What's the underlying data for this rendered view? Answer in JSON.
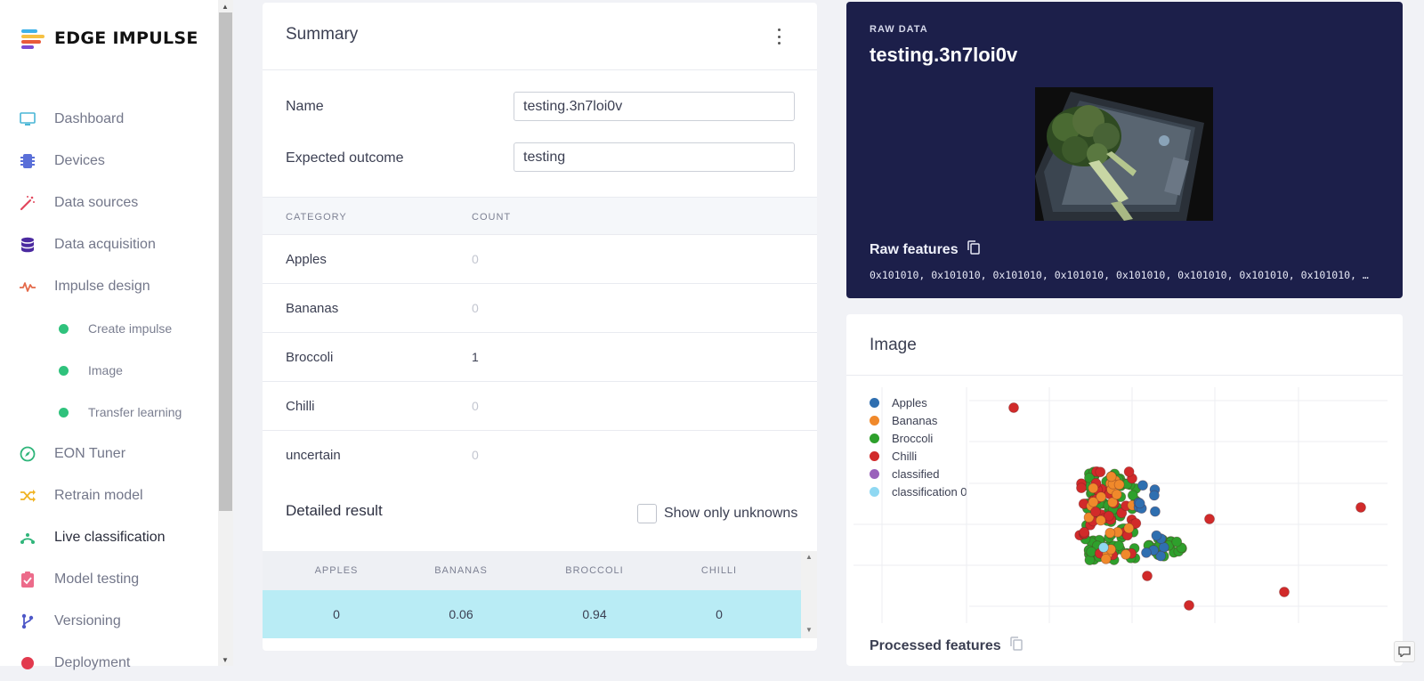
{
  "brand": {
    "name": "EDGE IMPULSE"
  },
  "nav": [
    {
      "label": "Dashboard",
      "icon": "monitor-icon"
    },
    {
      "label": "Devices",
      "icon": "chip-icon"
    },
    {
      "label": "Data sources",
      "icon": "wand-icon"
    },
    {
      "label": "Data acquisition",
      "icon": "database-icon"
    },
    {
      "label": "Impulse design",
      "icon": "pulse-icon"
    },
    {
      "label": "Create impulse",
      "icon": "dot-icon"
    },
    {
      "label": "Image",
      "icon": "dot-icon"
    },
    {
      "label": "Transfer learning",
      "icon": "dot-icon"
    },
    {
      "label": "EON Tuner",
      "icon": "compass-icon"
    },
    {
      "label": "Retrain model",
      "icon": "shuffle-icon"
    },
    {
      "label": "Live classification",
      "icon": "signal-icon"
    },
    {
      "label": "Model testing",
      "icon": "clipboard-check-icon"
    },
    {
      "label": "Versioning",
      "icon": "branch-icon"
    },
    {
      "label": "Deployment",
      "icon": "box-icon"
    }
  ],
  "summary": {
    "title": "Summary",
    "name_label": "Name",
    "name_value": "testing.3n7loi0v",
    "expected_label": "Expected outcome",
    "expected_value": "testing",
    "col_category": "CATEGORY",
    "col_count": "COUNT",
    "rows": [
      {
        "category": "Apples",
        "count": "0"
      },
      {
        "category": "Bananas",
        "count": "0"
      },
      {
        "category": "Broccoli",
        "count": "1"
      },
      {
        "category": "Chilli",
        "count": "0"
      },
      {
        "category": "uncertain",
        "count": "0"
      }
    ],
    "detailed_title": "Detailed result",
    "show_unknowns": "Show only unknowns",
    "detail_cols": [
      "APPLES",
      "BANANAS",
      "BROCCOLI",
      "CHILLI"
    ],
    "detail_values": [
      "0",
      "0.06",
      "0.94",
      "0"
    ]
  },
  "raw": {
    "kicker": "RAW DATA",
    "title": "testing.3n7loi0v",
    "features_label": "Raw features",
    "features_text": "0x101010, 0x101010, 0x101010, 0x101010, 0x101010, 0x101010, 0x101010, 0x101010, …"
  },
  "image_card": {
    "title": "Image",
    "processed_label": "Processed features",
    "legend": [
      {
        "name": "Apples",
        "color": "#2f6fb0"
      },
      {
        "name": "Bananas",
        "color": "#f0892b"
      },
      {
        "name": "Broccoli",
        "color": "#2ea02c"
      },
      {
        "name": "Chilli",
        "color": "#d12a2a"
      },
      {
        "name": "classified",
        "color": "#9a62bb"
      },
      {
        "name": "classification 0",
        "color": "#8fd8f2"
      }
    ]
  },
  "chart_data": {
    "type": "scatter",
    "title": "",
    "xlabel": "",
    "ylabel": "",
    "grid": true,
    "legend_position": "top-left",
    "series": [
      {
        "name": "Apples"
      },
      {
        "name": "Bananas"
      },
      {
        "name": "Broccoli"
      },
      {
        "name": "Chilli"
      },
      {
        "name": "classified"
      },
      {
        "name": "classification 0"
      }
    ]
  }
}
